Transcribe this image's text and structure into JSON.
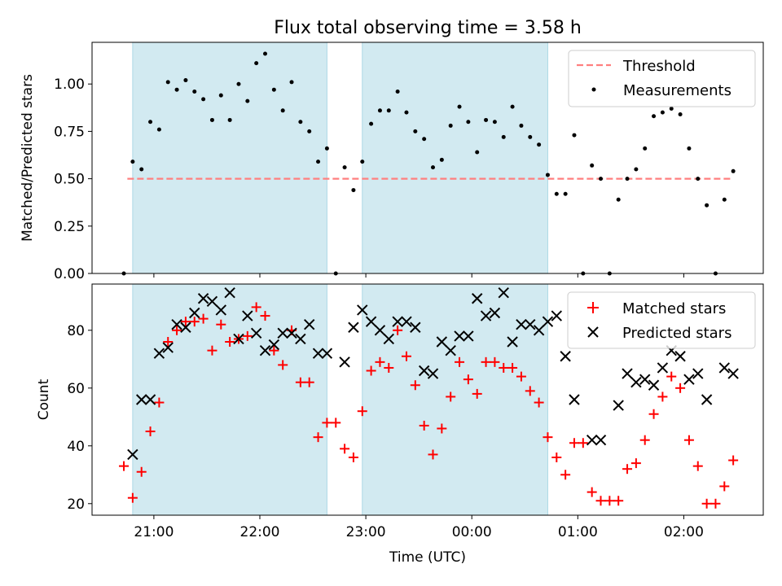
{
  "title": "Flux total observing time = 3.58 h",
  "colors": {
    "span": "#add8e6",
    "threshold": "#ff7f7f",
    "matched": "#ff0000",
    "predicted": "#000000",
    "measure": "#000000"
  },
  "chart_data": [
    {
      "type": "scatter",
      "ylabel": "Matched/Predicted stars",
      "ylim": [
        0,
        1.22
      ],
      "yticks": [
        "0.00",
        "0.25",
        "0.50",
        "0.75",
        "1.00"
      ],
      "ytick_values": [
        0,
        0.25,
        0.5,
        0.75,
        1.0
      ],
      "legend": {
        "placement": "top-right",
        "entries": [
          "Threshold",
          "Measurements"
        ]
      },
      "threshold": {
        "name": "Threshold",
        "y": 0.5,
        "x_start": "20:45",
        "x_end": "02:28"
      },
      "shaded_intervals": [
        [
          "20:48",
          "22:38"
        ],
        [
          "22:58",
          "00:43"
        ]
      ],
      "series": [
        {
          "name": "Measurements",
          "x": [
            "20:43",
            "20:48",
            "20:53",
            "20:58",
            "21:03",
            "21:08",
            "21:13",
            "21:18",
            "21:23",
            "21:28",
            "21:33",
            "21:38",
            "21:43",
            "21:48",
            "21:53",
            "21:58",
            "22:03",
            "22:08",
            "22:13",
            "22:18",
            "22:23",
            "22:28",
            "22:33",
            "22:38",
            "22:43",
            "22:48",
            "22:53",
            "22:58",
            "23:03",
            "23:08",
            "23:13",
            "23:18",
            "23:23",
            "23:28",
            "23:33",
            "23:38",
            "23:43",
            "23:48",
            "23:53",
            "23:58",
            "00:03",
            "00:08",
            "00:13",
            "00:18",
            "00:23",
            "00:28",
            "00:33",
            "00:38",
            "00:43",
            "00:48",
            "00:53",
            "00:58",
            "01:03",
            "01:08",
            "01:13",
            "01:18",
            "01:23",
            "01:28",
            "01:33",
            "01:38",
            "01:43",
            "01:48",
            "01:53",
            "01:58",
            "02:03",
            "02:08",
            "02:13",
            "02:18",
            "02:23",
            "02:28"
          ],
          "y": [
            0.0,
            0.59,
            0.55,
            0.8,
            0.76,
            1.01,
            0.97,
            1.02,
            0.96,
            0.92,
            0.81,
            0.94,
            0.81,
            1.0,
            0.91,
            1.11,
            1.16,
            0.97,
            0.86,
            1.01,
            0.8,
            0.75,
            0.59,
            0.66,
            0.0,
            0.56,
            0.44,
            0.59,
            0.79,
            0.86,
            0.86,
            0.96,
            0.85,
            0.75,
            0.71,
            0.56,
            0.6,
            0.78,
            0.88,
            0.8,
            0.64,
            0.81,
            0.8,
            0.72,
            0.88,
            0.78,
            0.72,
            0.68,
            0.52,
            0.42,
            0.42,
            0.73,
            0.0,
            0.57,
            0.5,
            0.0,
            0.39,
            0.5,
            0.55,
            0.66,
            0.83,
            0.85,
            0.87,
            0.84,
            0.66,
            0.5,
            0.36,
            0.0,
            0.39,
            0.54
          ]
        }
      ]
    },
    {
      "type": "scatter",
      "ylabel": "Count",
      "xlabel": "Time (UTC)",
      "ylim": [
        16,
        96
      ],
      "yticks": [
        "20",
        "40",
        "60",
        "80"
      ],
      "ytick_values": [
        20,
        40,
        60,
        80
      ],
      "xticks": [
        "21:00",
        "22:00",
        "23:00",
        "00:00",
        "01:00",
        "02:00"
      ],
      "xtick_values": [
        "21:00",
        "22:00",
        "23:00",
        "00:00",
        "01:00",
        "02:00"
      ],
      "x_range": [
        "20:25",
        "02:45"
      ],
      "legend": {
        "placement": "top-right",
        "entries": [
          "Matched stars",
          "Predicted stars"
        ]
      },
      "shaded_intervals": [
        [
          "20:48",
          "22:38"
        ],
        [
          "22:58",
          "00:43"
        ]
      ],
      "series": [
        {
          "name": "Matched stars",
          "x": [
            "20:43",
            "20:48",
            "20:53",
            "20:58",
            "21:03",
            "21:08",
            "21:13",
            "21:18",
            "21:23",
            "21:28",
            "21:33",
            "21:38",
            "21:43",
            "21:48",
            "21:53",
            "21:58",
            "22:03",
            "22:08",
            "22:13",
            "22:18",
            "22:23",
            "22:28",
            "22:33",
            "22:38",
            "22:43",
            "22:48",
            "22:53",
            "22:58",
            "23:03",
            "23:08",
            "23:13",
            "23:18",
            "23:23",
            "23:28",
            "23:33",
            "23:38",
            "23:43",
            "23:48",
            "23:53",
            "23:58",
            "00:03",
            "00:08",
            "00:13",
            "00:18",
            "00:23",
            "00:28",
            "00:33",
            "00:38",
            "00:43",
            "00:48",
            "00:53",
            "00:58",
            "01:03",
            "01:08",
            "01:13",
            "01:18",
            "01:23",
            "01:28",
            "01:33",
            "01:38",
            "01:43",
            "01:48",
            "01:53",
            "01:58",
            "02:03",
            "02:08",
            "02:13",
            "02:18",
            "02:23",
            "02:28"
          ],
          "y": [
            33,
            22,
            31,
            45,
            55,
            76,
            80,
            83,
            83,
            84,
            73,
            82,
            76,
            77,
            78,
            88,
            85,
            73,
            68,
            80,
            62,
            62,
            43,
            48,
            48,
            39,
            36,
            52,
            66,
            69,
            67,
            80,
            71,
            61,
            47,
            37,
            46,
            57,
            69,
            63,
            58,
            69,
            69,
            67,
            67,
            64,
            59,
            55,
            43,
            36,
            30,
            41,
            41,
            24,
            21,
            21,
            21,
            32,
            34,
            42,
            51,
            57,
            64,
            60,
            42,
            33,
            20,
            20,
            26,
            35
          ]
        },
        {
          "name": "Predicted stars",
          "x": [
            "20:48",
            "20:53",
            "20:58",
            "21:03",
            "21:08",
            "21:13",
            "21:18",
            "21:23",
            "21:28",
            "21:33",
            "21:38",
            "21:43",
            "21:48",
            "21:53",
            "21:58",
            "22:03",
            "22:08",
            "22:13",
            "22:18",
            "22:23",
            "22:28",
            "22:33",
            "22:38",
            "22:48",
            "22:53",
            "22:58",
            "23:03",
            "23:08",
            "23:13",
            "23:18",
            "23:23",
            "23:28",
            "23:33",
            "23:38",
            "23:43",
            "23:48",
            "23:53",
            "23:58",
            "00:03",
            "00:08",
            "00:13",
            "00:18",
            "00:23",
            "00:28",
            "00:33",
            "00:38",
            "00:43",
            "00:48",
            "00:53",
            "00:58",
            "01:08",
            "01:13",
            "01:23",
            "01:28",
            "01:33",
            "01:38",
            "01:43",
            "01:48",
            "01:53",
            "01:58",
            "02:03",
            "02:08",
            "02:13",
            "02:23",
            "02:28"
          ],
          "y": [
            37,
            56,
            56,
            72,
            74,
            82,
            81,
            86,
            91,
            90,
            87,
            93,
            77,
            85,
            79,
            73,
            75,
            79,
            79,
            77,
            82,
            72,
            72,
            69,
            81,
            87,
            83,
            80,
            77,
            83,
            83,
            81,
            66,
            65,
            76,
            73,
            78,
            78,
            91,
            85,
            86,
            93,
            76,
            82,
            82,
            80,
            83,
            85,
            71,
            56,
            42,
            42,
            54,
            65,
            62,
            63,
            61,
            67,
            73,
            71,
            63,
            65,
            56,
            67,
            65
          ]
        }
      ]
    }
  ]
}
